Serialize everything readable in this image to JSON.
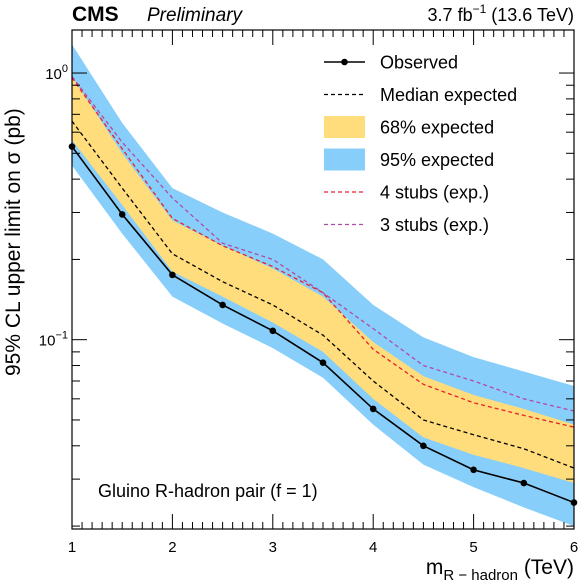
{
  "header": {
    "experiment": "CMS",
    "status": "Preliminary",
    "lumi_prefix": "3.7 fb",
    "lumi_exp": "−1",
    "lumi_suffix": " (13.6 TeV)"
  },
  "colors": {
    "band95": "#87cefa",
    "band68": "#ffdc7c",
    "observed": "#000000",
    "expected": "#000000",
    "stubs4": "#e8222b",
    "stubs3": "#b04aa8"
  },
  "chart_data": {
    "type": "line",
    "xlabel_main": "m",
    "xlabel_sub": "R − hadron",
    "xlabel_unit": " (TeV)",
    "ylabel": "95% CL upper limit on σ (pb)",
    "annotation": "Gluino R-hadron pair (f = 1)",
    "xlim": [
      1,
      6
    ],
    "ylim": [
      0.0195,
      1.45
    ],
    "yscale": "log",
    "x_ticks": [
      1,
      2,
      3,
      4,
      5,
      6
    ],
    "y_tick_labels": [
      {
        "value": 1,
        "base": "10",
        "exp": "0"
      },
      {
        "value": 0.1,
        "base": "10",
        "exp": "−1"
      }
    ],
    "legend_position": "top-right",
    "legend": [
      {
        "key": "observed",
        "label": "Observed"
      },
      {
        "key": "expected",
        "label": "Median expected"
      },
      {
        "key": "band68",
        "label": "68% expected"
      },
      {
        "key": "band95",
        "label": "95% expected"
      },
      {
        "key": "stubs4",
        "label": "4 stubs (exp.)"
      },
      {
        "key": "stubs3",
        "label": "3 stubs (exp.)"
      }
    ],
    "x": [
      1,
      1.5,
      2,
      2.5,
      3,
      3.5,
      4,
      4.5,
      5,
      5.5,
      6
    ],
    "series": [
      {
        "key": "observed",
        "name": "Observed",
        "values": [
          0.53,
          0.295,
          0.175,
          0.135,
          0.108,
          0.082,
          0.055,
          0.04,
          0.0325,
          0.029,
          0.0245
        ]
      },
      {
        "key": "expected",
        "name": "Median expected",
        "values": [
          0.66,
          0.37,
          0.21,
          0.165,
          0.135,
          0.104,
          0.07,
          0.05,
          0.044,
          0.039,
          0.033
        ]
      },
      {
        "key": "band68",
        "name": "68% expected",
        "lower": [
          0.56,
          0.32,
          0.18,
          0.145,
          0.116,
          0.09,
          0.06,
          0.043,
          0.037,
          0.033,
          0.029
        ],
        "upper": [
          0.97,
          0.5,
          0.28,
          0.225,
          0.185,
          0.145,
          0.098,
          0.073,
          0.062,
          0.055,
          0.048
        ]
      },
      {
        "key": "band95",
        "name": "95% expected",
        "lower": [
          0.45,
          0.25,
          0.145,
          0.115,
          0.093,
          0.072,
          0.048,
          0.034,
          0.028,
          0.0235,
          0.02
        ],
        "upper": [
          1.28,
          0.65,
          0.37,
          0.3,
          0.25,
          0.2,
          0.135,
          0.102,
          0.086,
          0.076,
          0.067
        ]
      },
      {
        "key": "stubs4",
        "name": "4 stubs (exp.)",
        "values": [
          0.96,
          0.52,
          0.285,
          0.225,
          0.188,
          0.15,
          0.092,
          0.068,
          0.058,
          0.052,
          0.047
        ]
      },
      {
        "key": "stubs3",
        "name": "3 stubs (exp.)",
        "values": [
          0.97,
          0.55,
          0.34,
          0.23,
          0.2,
          0.15,
          0.11,
          0.08,
          0.07,
          0.06,
          0.054
        ]
      }
    ]
  }
}
